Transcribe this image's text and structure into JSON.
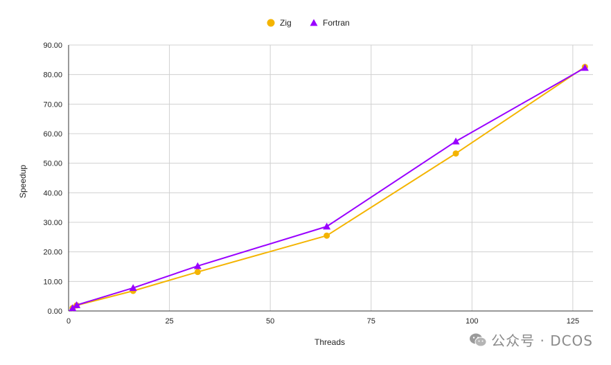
{
  "chart_data": {
    "type": "line",
    "xlabel": "Threads",
    "ylabel": "Speedup",
    "xlim": [
      0,
      130
    ],
    "ylim": [
      0,
      90
    ],
    "x_ticks": [
      0,
      25,
      50,
      75,
      100,
      125
    ],
    "y_ticks": [
      "0.00",
      "10.00",
      "20.00",
      "30.00",
      "40.00",
      "50.00",
      "60.00",
      "70.00",
      "80.00",
      "90.00"
    ],
    "grid": true,
    "legend_position": "top-center",
    "series": [
      {
        "name": "Zig",
        "marker": "circle",
        "color": "#F4B400",
        "x": [
          1,
          2,
          16,
          32,
          64,
          96,
          128
        ],
        "y": [
          1.0,
          1.9,
          6.8,
          13.2,
          25.5,
          53.3,
          82.6
        ]
      },
      {
        "name": "Fortran",
        "marker": "triangle",
        "color": "#9900FF",
        "x": [
          1,
          2,
          16,
          32,
          64,
          96,
          128
        ],
        "y": [
          1.0,
          2.0,
          7.8,
          15.2,
          28.6,
          57.4,
          82.3
        ]
      }
    ]
  },
  "watermark": {
    "text": "公众号 · DCOS",
    "icon": "wechat-icon"
  }
}
